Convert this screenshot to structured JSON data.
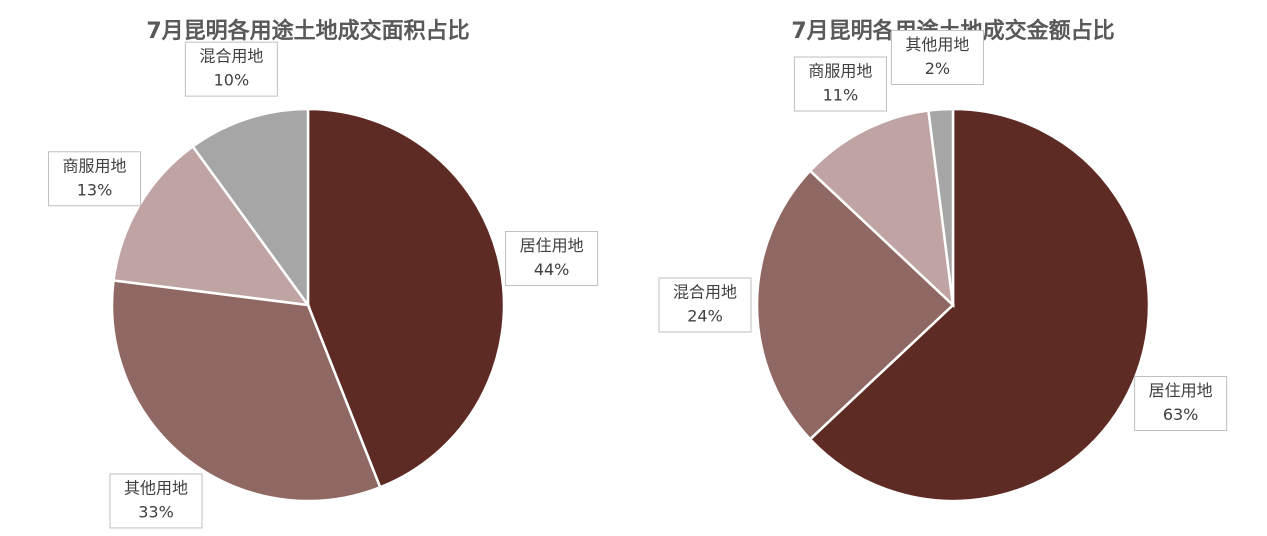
{
  "chart_data": [
    {
      "type": "pie",
      "title": "7月昆明各用途土地成交面积占比",
      "categories": [
        "居住用地",
        "其他用地",
        "商服用地",
        "混合用地"
      ],
      "values": [
        44,
        33,
        13,
        10
      ],
      "value_labels": [
        "44%",
        "33%",
        "13%",
        "10%"
      ],
      "colors": [
        "#5e2b24",
        "#906863",
        "#c0a4a3",
        "#a6a6a6"
      ]
    },
    {
      "type": "pie",
      "title": "7月昆明各用途土地成交金额占比",
      "categories": [
        "居住用地",
        "混合用地",
        "商服用地",
        "其他用地"
      ],
      "values": [
        63,
        24,
        11,
        2
      ],
      "value_labels": [
        "63%",
        "24%",
        "11%",
        "2%"
      ],
      "colors": [
        "#5e2b24",
        "#906863",
        "#c0a4a3",
        "#a6a6a6"
      ]
    }
  ]
}
